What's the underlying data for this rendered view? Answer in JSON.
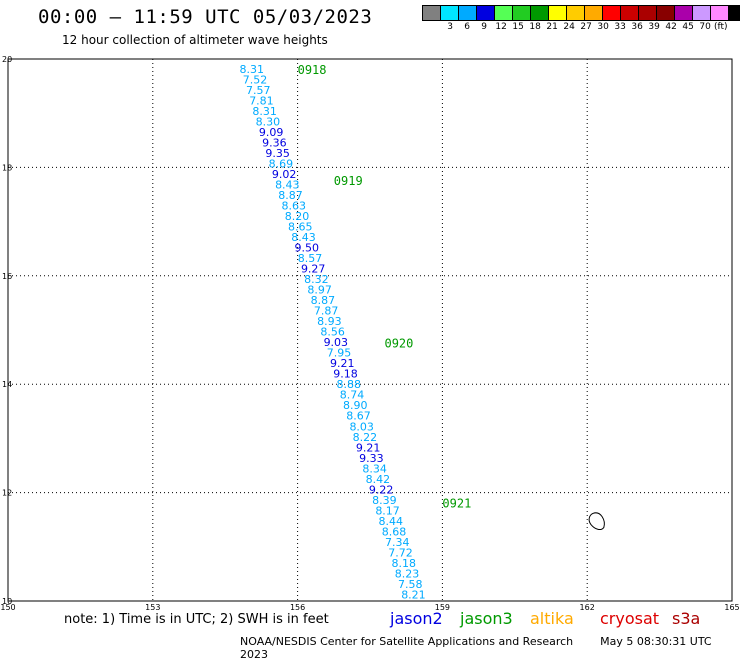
{
  "header": {
    "title": "00:00 – 11:59 UTC 05/03/2023",
    "subtitle": "12 hour collection of altimeter wave heights"
  },
  "legend": {
    "unit": "(ft)",
    "items": [
      {
        "label": "",
        "color": "#808080"
      },
      {
        "label": "3",
        "color": "#00e5ff"
      },
      {
        "label": "6",
        "color": "#00aaff"
      },
      {
        "label": "9",
        "color": "#0000e0"
      },
      {
        "label": "12",
        "color": "#55ff55"
      },
      {
        "label": "15",
        "color": "#22cc22"
      },
      {
        "label": "18",
        "color": "#009900"
      },
      {
        "label": "21",
        "color": "#ffff00"
      },
      {
        "label": "24",
        "color": "#ffcc00"
      },
      {
        "label": "27",
        "color": "#ffaa00"
      },
      {
        "label": "30",
        "color": "#ff0000"
      },
      {
        "label": "33",
        "color": "#cc0000"
      },
      {
        "label": "36",
        "color": "#aa0000"
      },
      {
        "label": "39",
        "color": "#880000"
      },
      {
        "label": "42",
        "color": "#aa00aa"
      },
      {
        "label": "45",
        "color": "#cc99ff"
      },
      {
        "label": "70",
        "color": "#ff88ff"
      },
      {
        "label": "",
        "color": "#000000"
      }
    ]
  },
  "map": {
    "lon_range": [
      150,
      165
    ],
    "lat_range": [
      10,
      20
    ],
    "lon_ticks": [
      "150",
      "153",
      "156",
      "159",
      "162",
      "165"
    ],
    "lat_ticks": [
      "20",
      "18",
      "16",
      "14",
      "12",
      "10"
    ],
    "time_labels": [
      {
        "text": "0918",
        "lon": 156.0,
        "lat": 19.8
      },
      {
        "text": "0919",
        "lon": 156.75,
        "lat": 17.75
      },
      {
        "text": "0920",
        "lon": 157.8,
        "lat": 14.75
      },
      {
        "text": "0921",
        "lon": 159.0,
        "lat": 11.8
      }
    ],
    "track": {
      "lon_start": 155.05,
      "lat_start": 19.82,
      "lon_end": 158.4,
      "lat_end": 10.12,
      "points": [
        {
          "v": "8.31",
          "c": "#00aaff"
        },
        {
          "v": "7.52",
          "c": "#00aaff"
        },
        {
          "v": "7.57",
          "c": "#00aaff"
        },
        {
          "v": "7.81",
          "c": "#00aaff"
        },
        {
          "v": "8.31",
          "c": "#00aaff"
        },
        {
          "v": "8.30",
          "c": "#00aaff"
        },
        {
          "v": "9.09",
          "c": "#0000e0"
        },
        {
          "v": "9.36",
          "c": "#0000e0"
        },
        {
          "v": "9.35",
          "c": "#0000e0"
        },
        {
          "v": "8.69",
          "c": "#00aaff"
        },
        {
          "v": "9.02",
          "c": "#0000e0"
        },
        {
          "v": "8.43",
          "c": "#00aaff"
        },
        {
          "v": "8.87",
          "c": "#00aaff"
        },
        {
          "v": "8.63",
          "c": "#00aaff"
        },
        {
          "v": "8.20",
          "c": "#00aaff"
        },
        {
          "v": "8.65",
          "c": "#00aaff"
        },
        {
          "v": "8.43",
          "c": "#00aaff"
        },
        {
          "v": "9.50",
          "c": "#0000e0"
        },
        {
          "v": "8.57",
          "c": "#00aaff"
        },
        {
          "v": "9.27",
          "c": "#0000e0"
        },
        {
          "v": "8.32",
          "c": "#00aaff"
        },
        {
          "v": "8.97",
          "c": "#00aaff"
        },
        {
          "v": "8.87",
          "c": "#00aaff"
        },
        {
          "v": "7.87",
          "c": "#00aaff"
        },
        {
          "v": "8.93",
          "c": "#00aaff"
        },
        {
          "v": "8.56",
          "c": "#00aaff"
        },
        {
          "v": "9.03",
          "c": "#0000e0"
        },
        {
          "v": "7.95",
          "c": "#00aaff"
        },
        {
          "v": "9.21",
          "c": "#0000e0"
        },
        {
          "v": "9.18",
          "c": "#0000e0"
        },
        {
          "v": "8.88",
          "c": "#00aaff"
        },
        {
          "v": "8.74",
          "c": "#00aaff"
        },
        {
          "v": "8.90",
          "c": "#00aaff"
        },
        {
          "v": "8.67",
          "c": "#00aaff"
        },
        {
          "v": "8.03",
          "c": "#00aaff"
        },
        {
          "v": "8.22",
          "c": "#00aaff"
        },
        {
          "v": "9.21",
          "c": "#0000e0"
        },
        {
          "v": "9.33",
          "c": "#0000e0"
        },
        {
          "v": "8.34",
          "c": "#00aaff"
        },
        {
          "v": "8.42",
          "c": "#00aaff"
        },
        {
          "v": "9.22",
          "c": "#0000e0"
        },
        {
          "v": "8.39",
          "c": "#00aaff"
        },
        {
          "v": "8.17",
          "c": "#00aaff"
        },
        {
          "v": "8.44",
          "c": "#00aaff"
        },
        {
          "v": "8.68",
          "c": "#00aaff"
        },
        {
          "v": "7.34",
          "c": "#00aaff"
        },
        {
          "v": "7.72",
          "c": "#00aaff"
        },
        {
          "v": "8.18",
          "c": "#00aaff"
        },
        {
          "v": "8.23",
          "c": "#00aaff"
        },
        {
          "v": "7.58",
          "c": "#00aaff"
        },
        {
          "v": "8.21",
          "c": "#00aaff"
        }
      ]
    },
    "island": {
      "lon": 162.2,
      "lat": 11.45
    }
  },
  "footer": {
    "note": "note: 1) Time is in UTC; 2) SWH is in feet",
    "satellites": [
      {
        "name": "jason2",
        "color": "#0000e0"
      },
      {
        "name": "jason3",
        "color": "#009900"
      },
      {
        "name": "altika",
        "color": "#ffaa00"
      },
      {
        "name": "cryosat",
        "color": "#dd0000"
      },
      {
        "name": "s3a",
        "color": "#aa0000"
      }
    ],
    "credit": "NOAA/NESDIS Center for Satellite Applications and Research",
    "timestamp": "May  5 08:30:31 UTC 2023"
  }
}
